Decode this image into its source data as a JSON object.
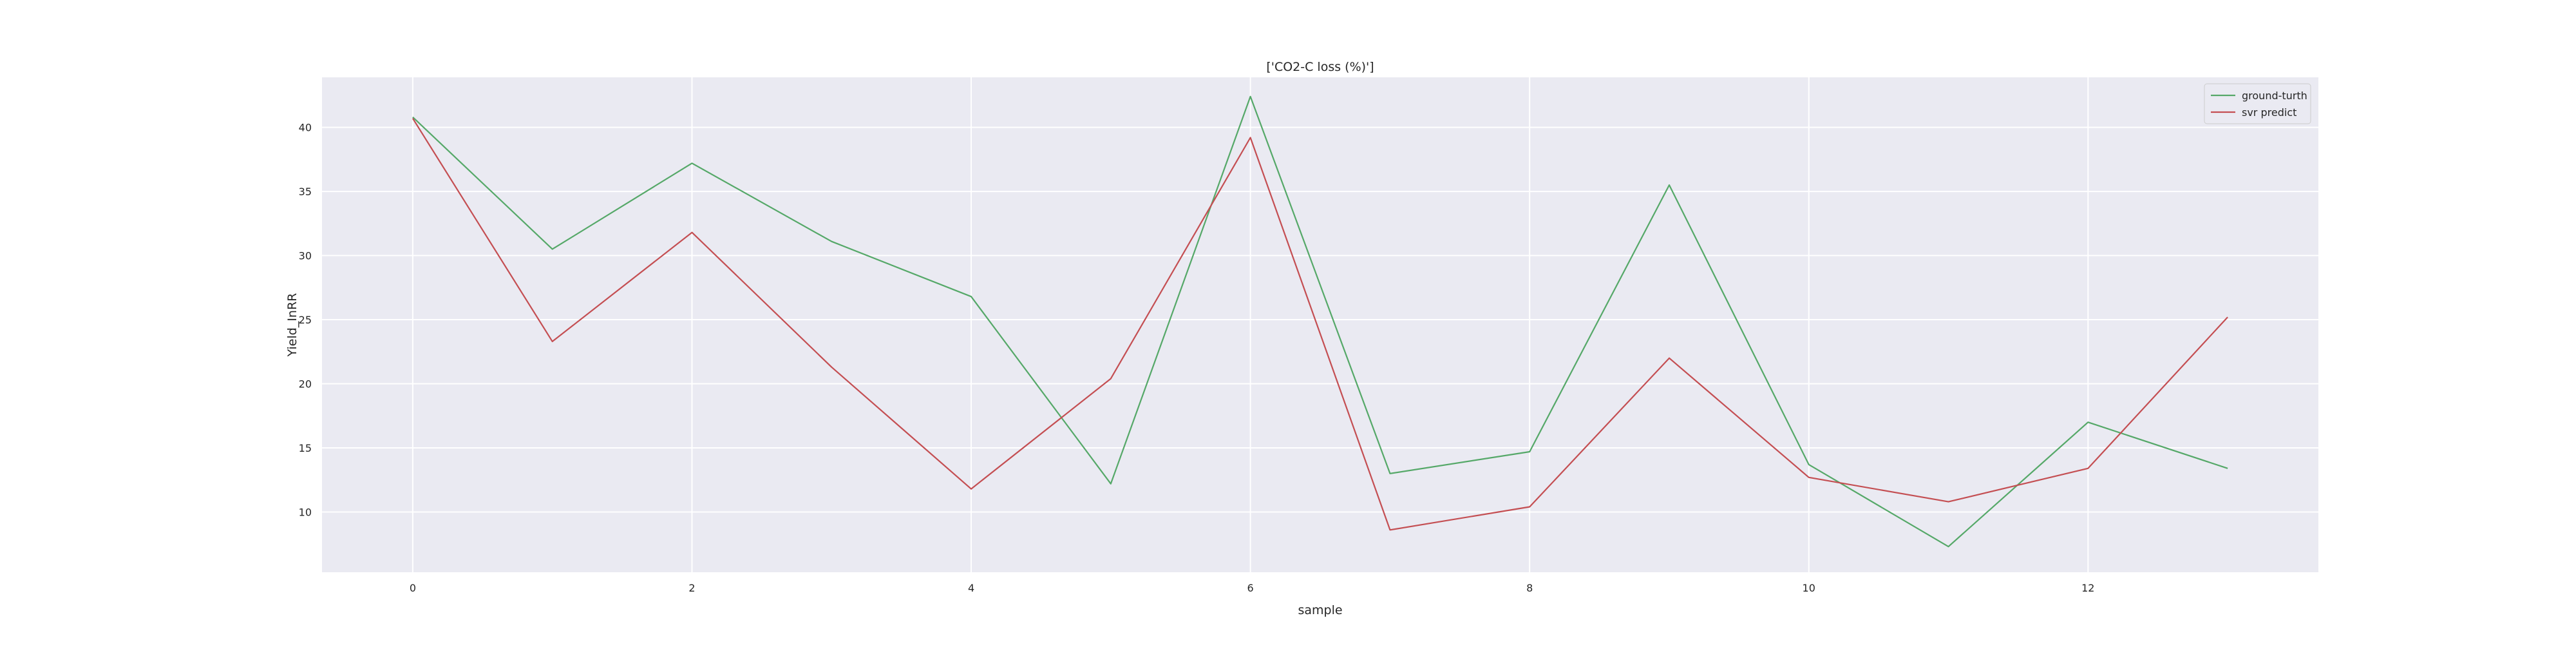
{
  "chart_data": {
    "type": "line",
    "title": "['CO2-C loss (%)']",
    "xlabel": "sample",
    "ylabel": "Yield_InRR",
    "x": [
      0,
      1,
      2,
      3,
      4,
      5,
      6,
      7,
      8,
      9,
      10,
      11,
      12,
      13
    ],
    "xlim": [
      -0.65,
      13.65
    ],
    "ylim": [
      5.3,
      43.9
    ],
    "xticks": [
      0,
      2,
      4,
      6,
      8,
      10,
      12
    ],
    "yticks": [
      10,
      15,
      20,
      25,
      30,
      35,
      40
    ],
    "grid": true,
    "legend_position": "top-right",
    "series": [
      {
        "name": "ground-turth",
        "color": "#55a868",
        "values": [
          40.8,
          30.5,
          37.2,
          31.1,
          26.8,
          12.2,
          42.4,
          13.0,
          14.7,
          35.5,
          13.7,
          7.3,
          17.0,
          13.4
        ]
      },
      {
        "name": "svr predict",
        "color": "#c44e52",
        "values": [
          40.7,
          23.3,
          31.8,
          21.3,
          11.8,
          20.4,
          39.2,
          8.6,
          10.4,
          22.0,
          12.7,
          10.8,
          13.4,
          25.2
        ]
      }
    ],
    "colors": {
      "plot_background": "#eaeaf2",
      "grid": "#ffffff"
    }
  }
}
